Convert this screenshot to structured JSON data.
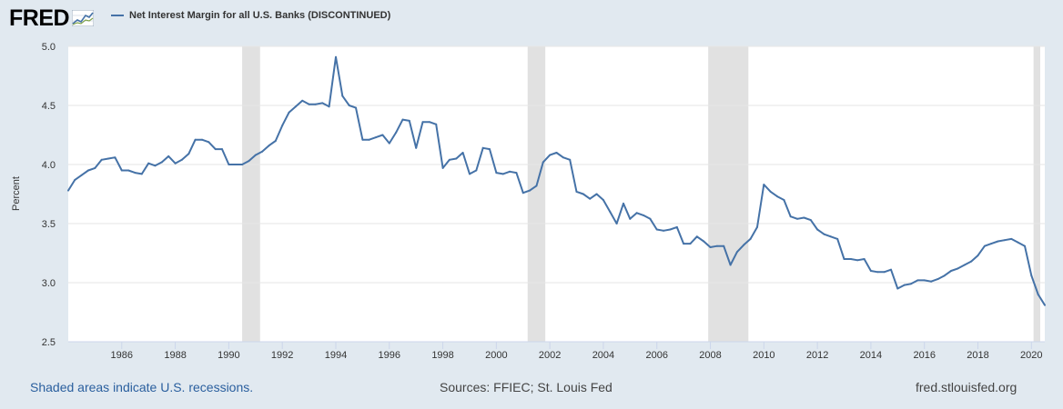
{
  "header": {
    "logo_text": "FRED"
  },
  "legend": {
    "label": "Net Interest Margin for all U.S. Banks (DISCONTINUED)"
  },
  "footer": {
    "note": "Shaded areas indicate U.S. recessions.",
    "source": "Sources: FFIEC; St. Louis Fed",
    "url": "fred.stlouisfed.org"
  },
  "colors": {
    "line": "#4572a7",
    "recession": "#e1e1e1",
    "background": "#e1e9f0",
    "plot": "#ffffff",
    "grid": "#e6e6e6"
  },
  "chart_data": {
    "type": "line",
    "title": "",
    "xlabel": "",
    "ylabel": "Percent",
    "ylim": [
      2.5,
      5.0
    ],
    "xlim": [
      1984.0,
      2020.5
    ],
    "yticks": [
      "2.5",
      "3.0",
      "3.5",
      "4.0",
      "4.5",
      "5.0"
    ],
    "xticks": [
      "1986",
      "1988",
      "1990",
      "1992",
      "1994",
      "1996",
      "1998",
      "2000",
      "2002",
      "2004",
      "2006",
      "2008",
      "2010",
      "2012",
      "2014",
      "2016",
      "2018",
      "2020"
    ],
    "grid": true,
    "recessions": [
      [
        1990.5,
        1991.17
      ],
      [
        2001.17,
        2001.83
      ],
      [
        2007.92,
        2009.42
      ],
      [
        2020.08,
        2020.33
      ]
    ],
    "series": [
      {
        "name": "Net Interest Margin for all U.S. Banks (DISCONTINUED)",
        "x": [
          1984.0,
          1984.25,
          1984.5,
          1984.75,
          1985.0,
          1985.25,
          1985.5,
          1985.75,
          1986.0,
          1986.25,
          1986.5,
          1986.75,
          1987.0,
          1987.25,
          1987.5,
          1987.75,
          1988.0,
          1988.25,
          1988.5,
          1988.75,
          1989.0,
          1989.25,
          1989.5,
          1989.75,
          1990.0,
          1990.25,
          1990.5,
          1990.75,
          1991.0,
          1991.25,
          1991.5,
          1991.75,
          1992.0,
          1992.25,
          1992.5,
          1992.75,
          1993.0,
          1993.25,
          1993.5,
          1993.75,
          1994.0,
          1994.25,
          1994.5,
          1994.75,
          1995.0,
          1995.25,
          1995.5,
          1995.75,
          1996.0,
          1996.25,
          1996.5,
          1996.75,
          1997.0,
          1997.25,
          1997.5,
          1997.75,
          1998.0,
          1998.25,
          1998.5,
          1998.75,
          1999.0,
          1999.25,
          1999.5,
          1999.75,
          2000.0,
          2000.25,
          2000.5,
          2000.75,
          2001.0,
          2001.25,
          2001.5,
          2001.75,
          2002.0,
          2002.25,
          2002.5,
          2002.75,
          2003.0,
          2003.25,
          2003.5,
          2003.75,
          2004.0,
          2004.25,
          2004.5,
          2004.75,
          2005.0,
          2005.25,
          2005.5,
          2005.75,
          2006.0,
          2006.25,
          2006.5,
          2006.75,
          2007.0,
          2007.25,
          2007.5,
          2007.75,
          2008.0,
          2008.25,
          2008.5,
          2008.75,
          2009.0,
          2009.25,
          2009.5,
          2009.75,
          2010.0,
          2010.25,
          2010.5,
          2010.75,
          2011.0,
          2011.25,
          2011.5,
          2011.75,
          2012.0,
          2012.25,
          2012.5,
          2012.75,
          2013.0,
          2013.25,
          2013.5,
          2013.75,
          2014.0,
          2014.25,
          2014.5,
          2014.75,
          2015.0,
          2015.25,
          2015.5,
          2015.75,
          2016.0,
          2016.25,
          2016.5,
          2016.75,
          2017.0,
          2017.25,
          2017.5,
          2017.75,
          2018.0,
          2018.25,
          2018.5,
          2018.75,
          2019.0,
          2019.25,
          2019.5,
          2019.75,
          2020.0,
          2020.25,
          2020.5
        ],
        "values": [
          3.78,
          3.87,
          3.91,
          3.95,
          3.97,
          4.04,
          4.05,
          4.06,
          3.95,
          3.95,
          3.93,
          3.92,
          4.01,
          3.99,
          4.02,
          4.07,
          4.01,
          4.04,
          4.09,
          4.21,
          4.21,
          4.19,
          4.13,
          4.13,
          4.0,
          4.0,
          4.0,
          4.03,
          4.08,
          4.11,
          4.16,
          4.2,
          4.33,
          4.44,
          4.49,
          4.54,
          4.51,
          4.51,
          4.52,
          4.49,
          4.91,
          4.58,
          4.5,
          4.48,
          4.21,
          4.21,
          4.23,
          4.25,
          4.18,
          4.27,
          4.38,
          4.37,
          4.14,
          4.36,
          4.36,
          4.34,
          3.97,
          4.04,
          4.05,
          4.1,
          3.92,
          3.95,
          4.14,
          4.13,
          3.93,
          3.92,
          3.94,
          3.93,
          3.76,
          3.78,
          3.82,
          4.02,
          4.08,
          4.1,
          4.06,
          4.04,
          3.77,
          3.75,
          3.71,
          3.75,
          3.7,
          3.6,
          3.5,
          3.67,
          3.54,
          3.59,
          3.57,
          3.54,
          3.45,
          3.44,
          3.45,
          3.47,
          3.33,
          3.33,
          3.39,
          3.35,
          3.3,
          3.31,
          3.31,
          3.15,
          3.26,
          3.32,
          3.37,
          3.47,
          3.83,
          3.77,
          3.73,
          3.7,
          3.56,
          3.54,
          3.55,
          3.53,
          3.45,
          3.41,
          3.39,
          3.37,
          3.2,
          3.2,
          3.19,
          3.2,
          3.1,
          3.09,
          3.09,
          3.11,
          2.95,
          2.98,
          2.99,
          3.02,
          3.02,
          3.01,
          3.03,
          3.06,
          3.1,
          3.12,
          3.15,
          3.18,
          3.23,
          3.31,
          3.33,
          3.35,
          3.36,
          3.37,
          3.34,
          3.31,
          3.06,
          2.9,
          2.81
        ]
      }
    ]
  }
}
